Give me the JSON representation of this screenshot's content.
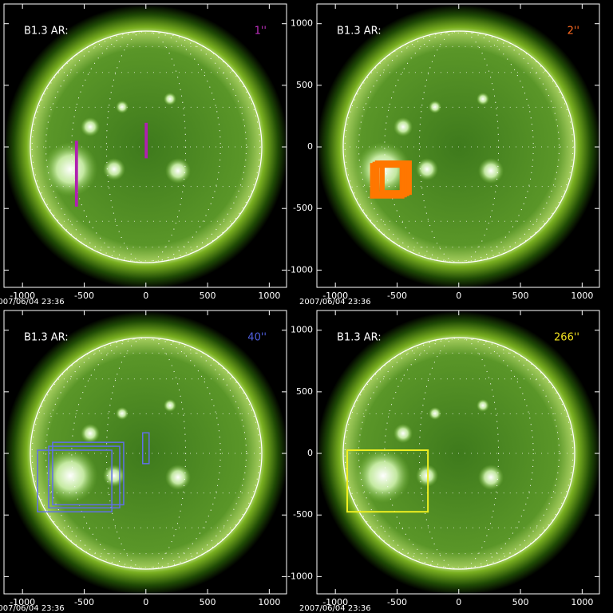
{
  "chart_data": [
    {
      "type": "fov",
      "title": "B1.3 AR:",
      "label": "1''",
      "label_color": "#c030c0",
      "date": "2007/06/04 23:36",
      "xlim": [
        -1150,
        1140
      ],
      "ylim": [
        -1140,
        1160
      ],
      "xticks": [
        -1000,
        -500,
        0,
        500,
        1000
      ],
      "yticks": [
        -1000,
        -500,
        0,
        500,
        1000
      ],
      "ytick_labels": false,
      "color": "#b020b0",
      "stroke_width": 3,
      "boxes": [
        {
          "x": [
            -565,
            -560
          ],
          "y": [
            -475,
            40
          ]
        },
        {
          "x": [
            0,
            5
          ],
          "y": [
            -83,
            186
          ]
        }
      ]
    },
    {
      "type": "fov",
      "title": "B1.3 AR:",
      "label": "2''",
      "label_color": "#ff6a20",
      "date": "2007/06/04 23:36",
      "xlim": [
        -1150,
        1140
      ],
      "ylim": [
        -1140,
        1160
      ],
      "xticks": [
        -1000,
        -500,
        0,
        500,
        1000
      ],
      "yticks": [
        -1000,
        -500,
        0,
        500,
        1000
      ],
      "ytick_labels": true,
      "color": "#ff7700",
      "stroke_width": 6,
      "boxes": [
        {
          "x": [
            -700,
            -460
          ],
          "y": [
            -400,
            -150
          ]
        },
        {
          "x": [
            -680,
            -440
          ],
          "y": [
            -390,
            -140
          ]
        },
        {
          "x": [
            -660,
            -420
          ],
          "y": [
            -380,
            -130
          ]
        },
        {
          "x": [
            -620,
            -400
          ],
          "y": [
            -370,
            -130
          ]
        }
      ]
    },
    {
      "type": "fov",
      "title": "B1.3 AR:",
      "label": "40''",
      "label_color": "#5060e0",
      "date": "2007/06/04 23:36",
      "xlim": [
        -1150,
        1140
      ],
      "ylim": [
        -1140,
        1160
      ],
      "xticks": [
        -1000,
        -500,
        0,
        500,
        1000
      ],
      "yticks": [
        -1000,
        -500,
        0,
        500,
        1000
      ],
      "ytick_labels": false,
      "color": "#6070e8",
      "stroke_width": 1.5,
      "boxes": [
        {
          "x": [
            -878,
            -276
          ],
          "y": [
            -474,
            26
          ]
        },
        {
          "x": [
            -788,
            -212
          ],
          "y": [
            -442,
            58
          ]
        },
        {
          "x": [
            -756,
            -180
          ],
          "y": [
            -417,
            90
          ]
        },
        {
          "x": [
            -26,
            26
          ],
          "y": [
            -83,
            167
          ]
        }
      ]
    },
    {
      "type": "fov",
      "title": "B1.3 AR:",
      "label": "266''",
      "label_color": "#f0e020",
      "date": "2007/06/04 23:36",
      "xlim": [
        -1150,
        1140
      ],
      "ylim": [
        -1140,
        1160
      ],
      "xticks": [
        -1000,
        -500,
        0,
        500,
        1000
      ],
      "yticks": [
        -1000,
        -500,
        0,
        500,
        1000
      ],
      "ytick_labels": true,
      "color": "#f0f020",
      "stroke_width": 2,
      "boxes": [
        {
          "x": [
            -904,
            -250
          ],
          "y": [
            -474,
            26
          ]
        }
      ]
    }
  ]
}
